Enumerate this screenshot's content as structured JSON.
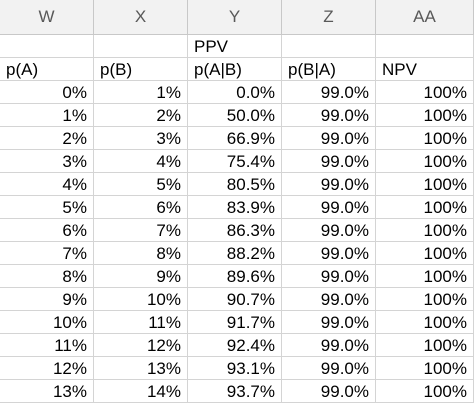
{
  "columns": [
    "W",
    "X",
    "Y",
    "Z",
    "AA"
  ],
  "header_row1": [
    "",
    "",
    "PPV",
    "",
    ""
  ],
  "header_row2": [
    "p(A)",
    "p(B)",
    "p(A|B)",
    "p(B|A)",
    "NPV"
  ],
  "rows": [
    [
      "0%",
      "1%",
      "0.0%",
      "99.0%",
      "100%"
    ],
    [
      "1%",
      "2%",
      "50.0%",
      "99.0%",
      "100%"
    ],
    [
      "2%",
      "3%",
      "66.9%",
      "99.0%",
      "100%"
    ],
    [
      "3%",
      "4%",
      "75.4%",
      "99.0%",
      "100%"
    ],
    [
      "4%",
      "5%",
      "80.5%",
      "99.0%",
      "100%"
    ],
    [
      "5%",
      "6%",
      "83.9%",
      "99.0%",
      "100%"
    ],
    [
      "6%",
      "7%",
      "86.3%",
      "99.0%",
      "100%"
    ],
    [
      "7%",
      "8%",
      "88.2%",
      "99.0%",
      "100%"
    ],
    [
      "8%",
      "9%",
      "89.6%",
      "99.0%",
      "100%"
    ],
    [
      "9%",
      "10%",
      "90.7%",
      "99.0%",
      "100%"
    ],
    [
      "10%",
      "11%",
      "91.7%",
      "99.0%",
      "100%"
    ],
    [
      "11%",
      "12%",
      "92.4%",
      "99.0%",
      "100%"
    ],
    [
      "12%",
      "13%",
      "93.1%",
      "99.0%",
      "100%"
    ],
    [
      "13%",
      "14%",
      "93.7%",
      "99.0%",
      "100%"
    ]
  ],
  "colors": {
    "header_bg": "#f2f2f2",
    "header_text": "#595959",
    "gridline": "#d4d4d4"
  }
}
